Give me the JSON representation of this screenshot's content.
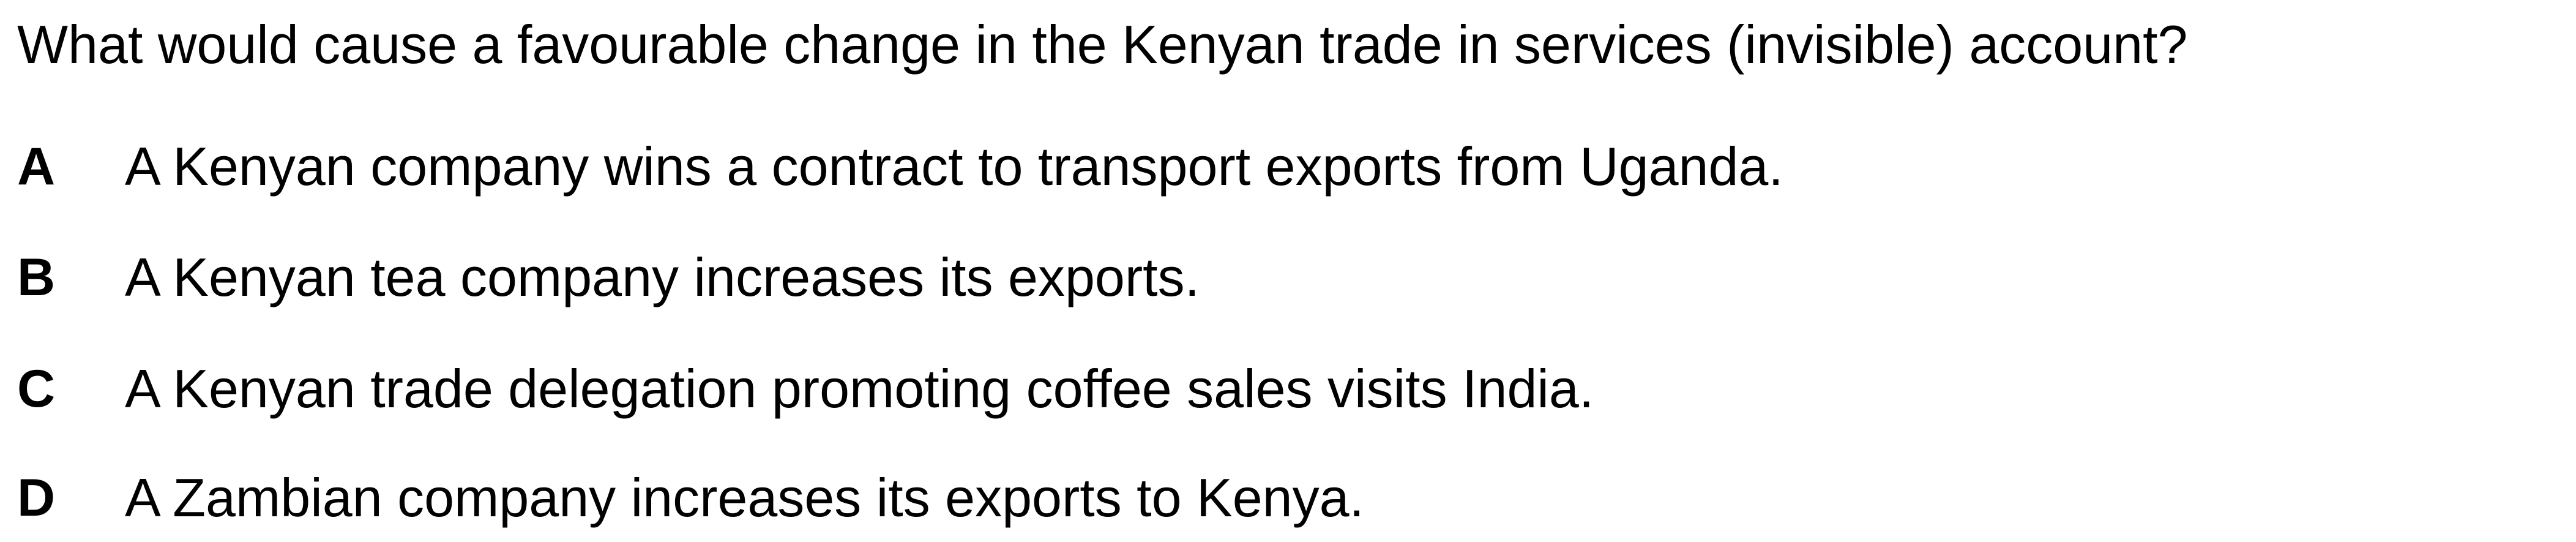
{
  "question": "What would cause a favourable change in the Kenyan trade in services (invisible) account?",
  "options": [
    {
      "letter": "A",
      "text": "A Kenyan company wins a contract to transport exports from Uganda."
    },
    {
      "letter": "B",
      "text": "A Kenyan tea company increases its exports."
    },
    {
      "letter": "C",
      "text": "A Kenyan trade delegation promoting coffee sales visits India."
    },
    {
      "letter": "D",
      "text": "A Zambian company increases its exports to Kenya."
    }
  ]
}
